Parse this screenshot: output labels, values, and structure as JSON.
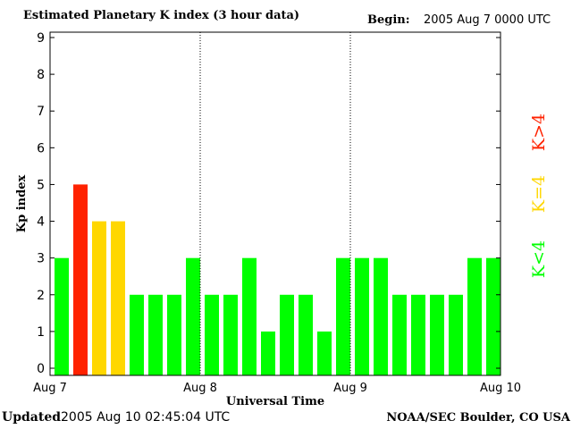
{
  "header": {
    "title": "Estimated Planetary K index (3 hour data)",
    "begin_label": "Begin:",
    "begin_value": "2005 Aug 7 0000 UTC"
  },
  "footer": {
    "updated_label": "Updated",
    "updated_value": "2005 Aug 10 02:45:04 UTC",
    "source": "NOAA/SEC Boulder, CO USA"
  },
  "colors": {
    "low": "#00ff00",
    "equal": "#ffd700",
    "high": "#ff2200",
    "axis": "#000000"
  },
  "chart_data": {
    "type": "bar",
    "title": "Estimated Planetary K index (3 hour data)",
    "xlabel": "Universal Time",
    "ylabel": "Kp index",
    "ylim": [
      0,
      9
    ],
    "yticks": [
      "0",
      "1",
      "2",
      "3",
      "4",
      "5",
      "6",
      "7",
      "8",
      "9"
    ],
    "xticks": [
      "Aug 7",
      "Aug 8",
      "Aug 9",
      "Aug 10"
    ],
    "interval_hours": 3,
    "values": [
      3,
      5,
      4,
      4,
      2,
      2,
      2,
      3,
      2,
      2,
      3,
      1,
      2,
      2,
      1,
      3,
      3,
      3,
      2,
      2,
      2,
      2,
      3,
      3
    ],
    "legend": [
      {
        "label": "K<4",
        "color": "#00ff00"
      },
      {
        "label": "K=4",
        "color": "#ffd700"
      },
      {
        "label": "K>4",
        "color": "#ff2200"
      }
    ],
    "grid": "dotted day separators"
  }
}
